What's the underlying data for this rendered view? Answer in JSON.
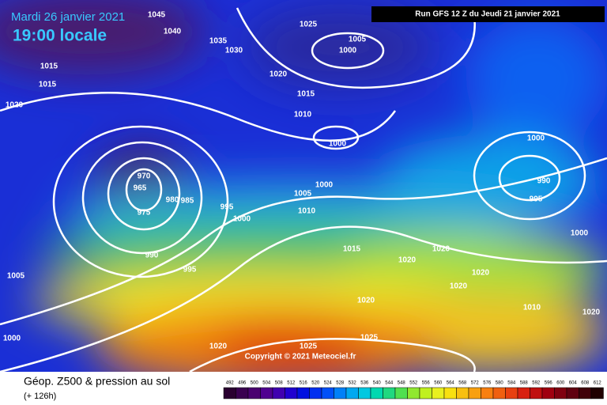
{
  "header": {
    "date": "Mardi 26 janvier 2021",
    "time": "19:00 locale",
    "run": "Run GFS 12 Z du Jeudi 21 janvier 2021"
  },
  "map": {
    "isobar_labels": [
      1045,
      1040,
      1035,
      1030,
      1025,
      1005,
      1000,
      1020,
      1015,
      1015,
      1020,
      1015,
      1010,
      1000,
      1000,
      970,
      965,
      980,
      985,
      975,
      990,
      995,
      1005,
      1000,
      995,
      1000,
      1010,
      1015,
      1020,
      1020,
      1020,
      1020,
      990,
      995,
      1005,
      1000,
      1010,
      1020,
      1020,
      1025,
      1025,
      1020,
      1000
    ],
    "copyright": "Copyright © 2021 Meteociel.fr"
  },
  "footer": {
    "title": "Géop. Z500 & pression au sol",
    "lead": "(+ 126h)",
    "scale": [
      492,
      496,
      500,
      504,
      508,
      512,
      516,
      520,
      524,
      528,
      532,
      536,
      540,
      544,
      548,
      552,
      556,
      560,
      564,
      568,
      572,
      576,
      580,
      584,
      588,
      592,
      596,
      600,
      604,
      608,
      612
    ]
  }
}
